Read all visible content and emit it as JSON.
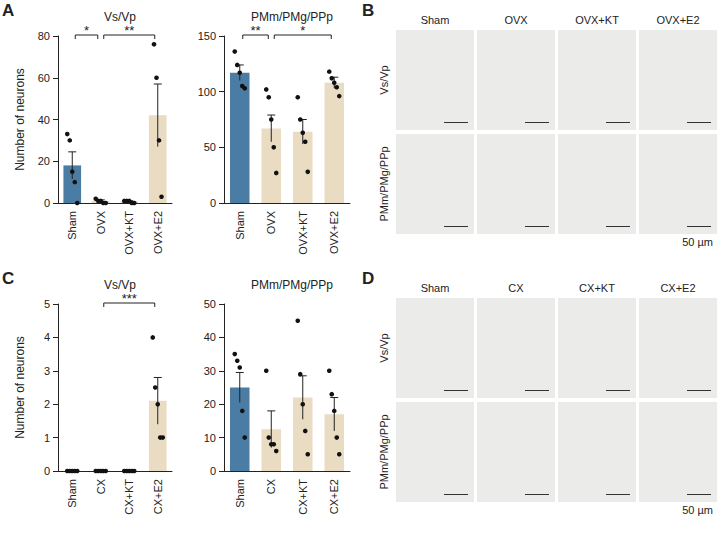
{
  "chart_data": [
    {
      "type": "bar",
      "panel": "A",
      "title": "Vs/Vp",
      "y_label": "Number of neurons",
      "categories": [
        "Sham",
        "OVX",
        "OVX+KT",
        "OVX+E2"
      ],
      "values": [
        18,
        1,
        0.8,
        42
      ],
      "errors": [
        6.5,
        0.5,
        0.3,
        15
      ],
      "points": [
        [
          33,
          30,
          15,
          10,
          0
        ],
        [
          2,
          1,
          1,
          0,
          0
        ],
        [
          1,
          1,
          1,
          0,
          0
        ],
        [
          76,
          60,
          30,
          3
        ]
      ],
      "colors": [
        "#4b7ca4",
        "#e9dcc3",
        "#e9dcc3",
        "#e9dcc3"
      ],
      "ylim": [
        0,
        80
      ],
      "yticks": [
        0,
        20,
        40,
        60,
        80
      ],
      "significance": [
        {
          "from": "Sham",
          "to": "OVX",
          "label": "*"
        },
        {
          "from": "OVX",
          "to": "OVX+E2",
          "label": "**"
        }
      ]
    },
    {
      "type": "bar",
      "panel": "A",
      "title": "PMm/PMg/PPp",
      "categories": [
        "Sham",
        "OVX",
        "OVX+KT",
        "OVX+E2"
      ],
      "values": [
        117,
        67,
        64,
        108
      ],
      "errors": [
        7,
        12,
        11,
        5
      ],
      "points": [
        [
          136,
          124,
          117,
          105,
          103
        ],
        [
          102,
          95,
          75,
          50,
          27
        ],
        [
          95,
          75,
          63,
          55,
          28
        ],
        [
          118,
          112,
          108,
          104,
          96
        ]
      ],
      "colors": [
        "#4b7ca4",
        "#e9dcc3",
        "#e9dcc3",
        "#e9dcc3"
      ],
      "ylim": [
        0,
        150
      ],
      "yticks": [
        0,
        50,
        100,
        150
      ],
      "significance": [
        {
          "from": "Sham",
          "to": "OVX",
          "label": "**"
        },
        {
          "from": "OVX",
          "to": "OVX+E2",
          "label": "*"
        }
      ]
    },
    {
      "type": "bar",
      "panel": "C",
      "title": "Vs/Vp",
      "y_label": "Number of neurons",
      "categories": [
        "Sham",
        "CX",
        "CX+KT",
        "CX+E2"
      ],
      "values": [
        0,
        0,
        0,
        2.1
      ],
      "errors": [
        0,
        0,
        0,
        0.7
      ],
      "points": [
        [
          0,
          0,
          0,
          0,
          0
        ],
        [
          0,
          0,
          0,
          0,
          0
        ],
        [
          0,
          0,
          0,
          0,
          0
        ],
        [
          4,
          2.5,
          2,
          1,
          1
        ]
      ],
      "colors": [
        "#4b7ca4",
        "#e9dcc3",
        "#e9dcc3",
        "#e9dcc3"
      ],
      "ylim": [
        0,
        5
      ],
      "yticks": [
        0,
        1,
        2,
        3,
        4,
        5
      ],
      "significance": [
        {
          "from": "CX",
          "to": "CX+E2",
          "label": "***"
        }
      ]
    },
    {
      "type": "bar",
      "panel": "C",
      "title": "PMm/PMg/PPp",
      "categories": [
        "Sham",
        "CX",
        "CX+KT",
        "CX+E2"
      ],
      "values": [
        25,
        12.5,
        22,
        17
      ],
      "errors": [
        4.5,
        5.5,
        6.5,
        5
      ],
      "points": [
        [
          35,
          33,
          31,
          18,
          10
        ],
        [
          30,
          10,
          8,
          8,
          6
        ],
        [
          45,
          29,
          20,
          12,
          5
        ],
        [
          30,
          23,
          18,
          10,
          5
        ]
      ],
      "colors": [
        "#4b7ca4",
        "#e9dcc3",
        "#e9dcc3",
        "#e9dcc3"
      ],
      "ylim": [
        0,
        50
      ],
      "yticks": [
        0,
        10,
        20,
        30,
        40,
        50
      ]
    }
  ],
  "image_panels": [
    {
      "panel": "B",
      "columns": [
        "Sham",
        "OVX",
        "OVX+KT",
        "OVX+E2"
      ],
      "rows": [
        "Vs/Vp",
        "PMm/PMg/PPp"
      ],
      "scale_bar": "50 µm"
    },
    {
      "panel": "D",
      "columns": [
        "Sham",
        "CX",
        "CX+KT",
        "CX+E2"
      ],
      "rows": [
        "Vs/Vp",
        "PMm/PMg/PPp"
      ],
      "scale_bar": "50 µm"
    }
  ]
}
